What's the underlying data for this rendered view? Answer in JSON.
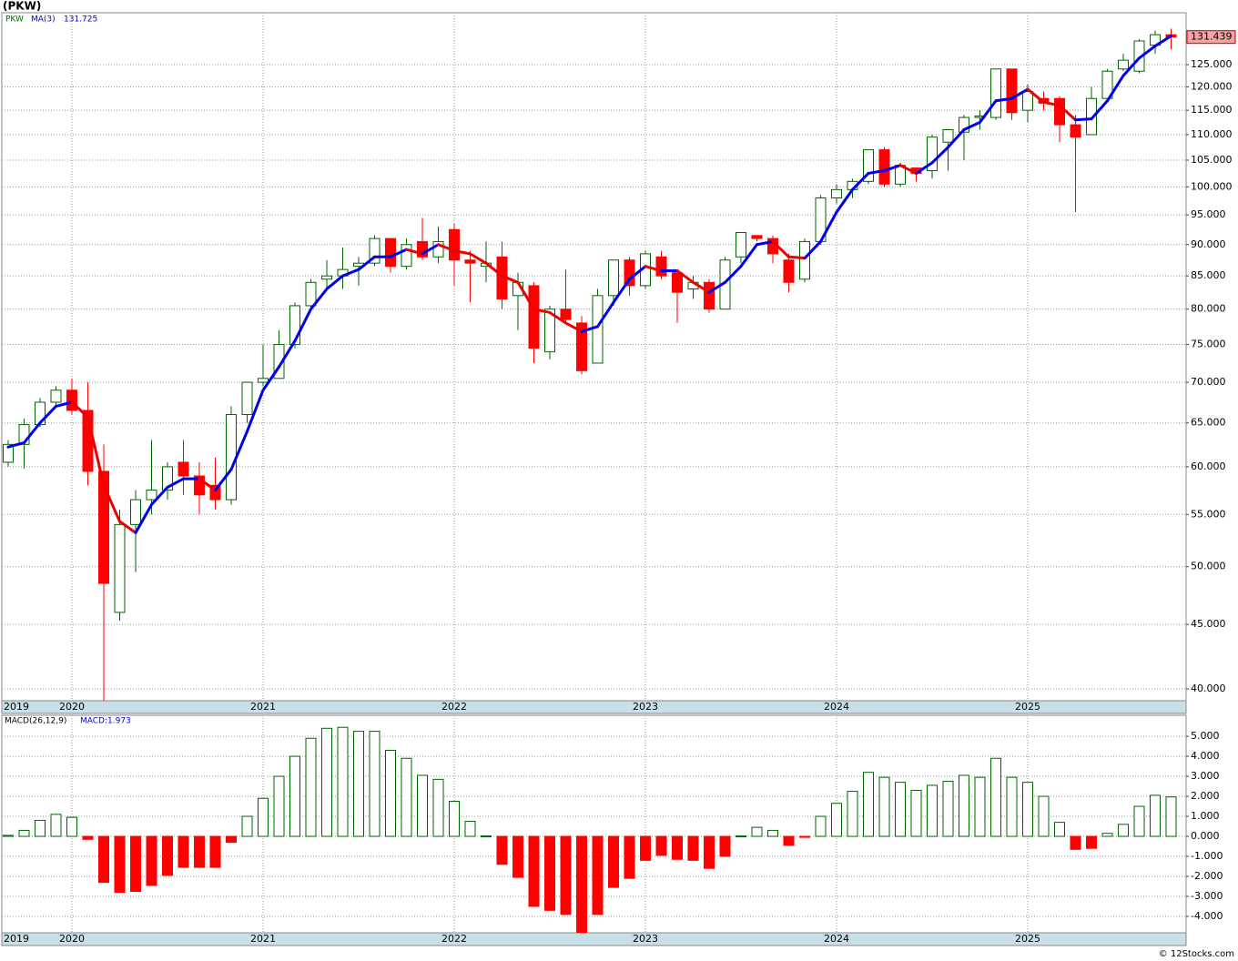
{
  "title": "(PKW)",
  "footer": "© 12Stocks.com",
  "chart_data": [
    {
      "type": "candlestick",
      "symbol": "PKW",
      "ma_name": "MA(3)",
      "ma_value": "131.725",
      "last_price": "131.439",
      "categories": [
        "2019",
        null,
        null,
        null,
        "2020",
        null,
        null,
        null,
        null,
        null,
        null,
        null,
        null,
        null,
        null,
        null,
        "2021",
        null,
        null,
        null,
        null,
        null,
        null,
        null,
        null,
        null,
        null,
        null,
        "2022",
        null,
        null,
        null,
        null,
        null,
        null,
        null,
        null,
        null,
        null,
        null,
        "2023",
        null,
        null,
        null,
        null,
        null,
        null,
        null,
        null,
        null,
        null,
        null,
        "2024",
        null,
        null,
        null,
        null,
        null,
        null,
        null,
        null,
        null,
        null,
        null,
        "2025",
        null,
        null,
        null,
        null,
        null,
        null,
        null,
        null,
        null
      ],
      "open": [
        60.5,
        62.5,
        64.8,
        67.5,
        69,
        66.5,
        59.5,
        46,
        54,
        56.5,
        57.5,
        60.5,
        59,
        58,
        56.5,
        66,
        70,
        70.5,
        75,
        80.5,
        84.5,
        85,
        86.5,
        87,
        91,
        86.5,
        90.5,
        88,
        92.5,
        87.5,
        86.5,
        88,
        82,
        83.5,
        74,
        80,
        78,
        72.5,
        82,
        87.5,
        83.5,
        88,
        85.5,
        83,
        84,
        80,
        88,
        91.5,
        91,
        87.5,
        84.5,
        90.5,
        98,
        99.5,
        101,
        107,
        100.5,
        103.5,
        103,
        108.5,
        110.5,
        113.5,
        113.5,
        124,
        115,
        117.5,
        117.5,
        112,
        110,
        117.5,
        124,
        123.5,
        129.5,
        132
      ],
      "high": [
        63,
        65.5,
        68,
        69.5,
        70.5,
        70,
        62.5,
        55.5,
        57.5,
        63,
        60.5,
        63,
        60.5,
        61,
        67,
        70,
        75,
        77,
        81,
        84.5,
        87.5,
        89.5,
        88,
        91.5,
        91,
        91,
        94.5,
        93,
        93.5,
        89,
        90.5,
        90.5,
        85.5,
        84,
        80.5,
        86,
        79,
        83,
        87.5,
        88,
        89,
        89,
        86,
        85,
        84.5,
        88,
        92,
        91.5,
        91.5,
        88.5,
        91,
        98.5,
        100.5,
        101.5,
        107,
        107.5,
        104.5,
        103.5,
        110,
        111,
        114,
        115,
        124,
        124,
        120.5,
        119,
        118,
        114,
        120,
        124,
        127.5,
        131,
        133,
        133.5
      ],
      "low": [
        60,
        59.8,
        64.5,
        67,
        66,
        58,
        39,
        45.3,
        49.5,
        55,
        56.5,
        57,
        55,
        55.5,
        56,
        65,
        69.5,
        70.5,
        74.5,
        80,
        83,
        83,
        83.5,
        86.5,
        85.5,
        86,
        87.5,
        87,
        83.5,
        81,
        84,
        80,
        77,
        72.5,
        73,
        78,
        71,
        72.5,
        80.5,
        82,
        83,
        84.5,
        78,
        81.5,
        79.5,
        80,
        87,
        90.5,
        87,
        82.5,
        84,
        90,
        97,
        98,
        100.5,
        100,
        100,
        101,
        101.5,
        103,
        105,
        111,
        113,
        113,
        112.5,
        115,
        108.5,
        95.5,
        110,
        117,
        123.5,
        123,
        127.5,
        128.5
      ],
      "close": [
        62.5,
        64.8,
        67.5,
        69,
        66.5,
        59.5,
        48.5,
        54,
        56.5,
        57.5,
        60,
        59,
        57,
        56.5,
        66,
        70,
        70.5,
        75,
        80.5,
        84,
        85,
        86,
        87,
        91,
        86.5,
        90,
        88,
        90.5,
        87.5,
        87,
        87,
        81.5,
        84,
        74.5,
        80,
        78.5,
        71.5,
        82,
        87.5,
        83.5,
        88.5,
        85,
        82.5,
        84,
        80,
        87.5,
        92,
        91,
        88.5,
        84,
        90.5,
        98,
        99.5,
        101,
        107,
        100.5,
        104,
        102.5,
        109.5,
        111,
        113.5,
        113.8,
        124,
        114.5,
        119,
        116.5,
        112,
        109.5,
        117.5,
        123.5,
        126,
        130.5,
        132,
        131.439
      ],
      "ma": [
        62.2,
        62.7,
        65,
        67,
        67.5,
        65.7,
        58,
        54.3,
        53.2,
        56,
        57.8,
        58.7,
        58.7,
        57.5,
        59.7,
        64,
        69,
        72,
        75.5,
        80,
        83,
        85,
        86,
        88,
        88,
        89.2,
        88.5,
        90,
        89,
        88.5,
        87,
        85,
        84,
        80,
        79.5,
        78,
        76.8,
        77.5,
        81,
        84.5,
        86.5,
        85.8,
        85.8,
        84,
        82.5,
        84,
        86.5,
        90,
        90.5,
        88,
        87.8,
        90.5,
        95.5,
        99.5,
        102.5,
        103,
        104,
        102.5,
        104.5,
        107.5,
        111,
        112.5,
        117,
        117.5,
        119.5,
        116.7,
        116,
        113,
        113.2,
        117,
        122.5,
        126.5,
        129.3,
        131.7
      ],
      "ylim": [
        39.15,
        137.4
      ],
      "log_scale": true,
      "grid": true,
      "yticks": [
        {
          "value": 40,
          "label": "40.000"
        },
        {
          "value": 45,
          "label": "45.000"
        },
        {
          "value": 50,
          "label": "50.000"
        },
        {
          "value": 55,
          "label": "55.000"
        },
        {
          "value": 60,
          "label": "60.000"
        },
        {
          "value": 65,
          "label": "65.000"
        },
        {
          "value": 70,
          "label": "70.000"
        },
        {
          "value": 75,
          "label": "75.000"
        },
        {
          "value": 80,
          "label": "80.000"
        },
        {
          "value": 85,
          "label": "85.000"
        },
        {
          "value": 90,
          "label": "90.000"
        },
        {
          "value": 95,
          "label": "95.000"
        },
        {
          "value": 100,
          "label": "100.000"
        },
        {
          "value": 105,
          "label": "105.000"
        },
        {
          "value": 110,
          "label": "110.000"
        },
        {
          "value": 115,
          "label": "115.000"
        },
        {
          "value": 120,
          "label": "120.000"
        },
        {
          "value": 125,
          "label": "125.000"
        }
      ],
      "up_color": "#006400",
      "down_color": "#ff0000",
      "ma_up_color": "#0000ee",
      "ma_down_color": "#ee0000"
    },
    {
      "type": "bar",
      "name": "MACD(26,12,9)",
      "value_text": "MACD:1.973",
      "categories": [
        "2019",
        null,
        null,
        null,
        "2020",
        null,
        null,
        null,
        null,
        null,
        null,
        null,
        null,
        null,
        null,
        null,
        "2021",
        null,
        null,
        null,
        null,
        null,
        null,
        null,
        null,
        null,
        null,
        null,
        "2022",
        null,
        null,
        null,
        null,
        null,
        null,
        null,
        null,
        null,
        null,
        null,
        "2023",
        null,
        null,
        null,
        null,
        null,
        null,
        null,
        null,
        null,
        null,
        null,
        "2024",
        null,
        null,
        null,
        null,
        null,
        null,
        null,
        null,
        null,
        null,
        null,
        "2025",
        null,
        null,
        null,
        null,
        null,
        null,
        null,
        null,
        null
      ],
      "values": [
        0.05,
        0.3,
        0.8,
        1.1,
        0.95,
        -0.15,
        -2.3,
        -2.8,
        -2.75,
        -2.45,
        -1.95,
        -1.55,
        -1.55,
        -1.55,
        -0.3,
        1.0,
        1.9,
        3.0,
        4.0,
        4.9,
        5.4,
        5.45,
        5.25,
        5.25,
        4.3,
        3.9,
        3.05,
        2.85,
        1.75,
        0.75,
        0.02,
        -1.4,
        -2.05,
        -3.5,
        -3.7,
        -3.9,
        -4.8,
        -3.9,
        -2.55,
        -2.1,
        -1.2,
        -0.95,
        -1.15,
        -1.2,
        -1.6,
        -1.0,
        0.02,
        0.45,
        0.3,
        -0.45,
        -0.05,
        1.0,
        1.65,
        2.25,
        3.2,
        2.95,
        2.7,
        2.3,
        2.55,
        2.75,
        3.05,
        2.95,
        3.9,
        2.95,
        2.7,
        2.0,
        0.7,
        -0.65,
        -0.6,
        0.15,
        0.6,
        1.5,
        2.05,
        1.97
      ],
      "ylim": [
        -4.82,
        6.05
      ],
      "grid": true,
      "yticks": [
        {
          "value": -4,
          "label": "-4.000"
        },
        {
          "value": -3,
          "label": "-3.000"
        },
        {
          "value": -2,
          "label": "-2.000"
        },
        {
          "value": -1,
          "label": "-1.000"
        },
        {
          "value": 0,
          "label": "0.000"
        },
        {
          "value": 1,
          "label": "1.000"
        },
        {
          "value": 2,
          "label": "2.000"
        },
        {
          "value": 3,
          "label": "3.000"
        },
        {
          "value": 4,
          "label": "4.000"
        },
        {
          "value": 5,
          "label": "5.000"
        }
      ],
      "up_color": "#006400",
      "down_color": "#ff0000"
    }
  ]
}
